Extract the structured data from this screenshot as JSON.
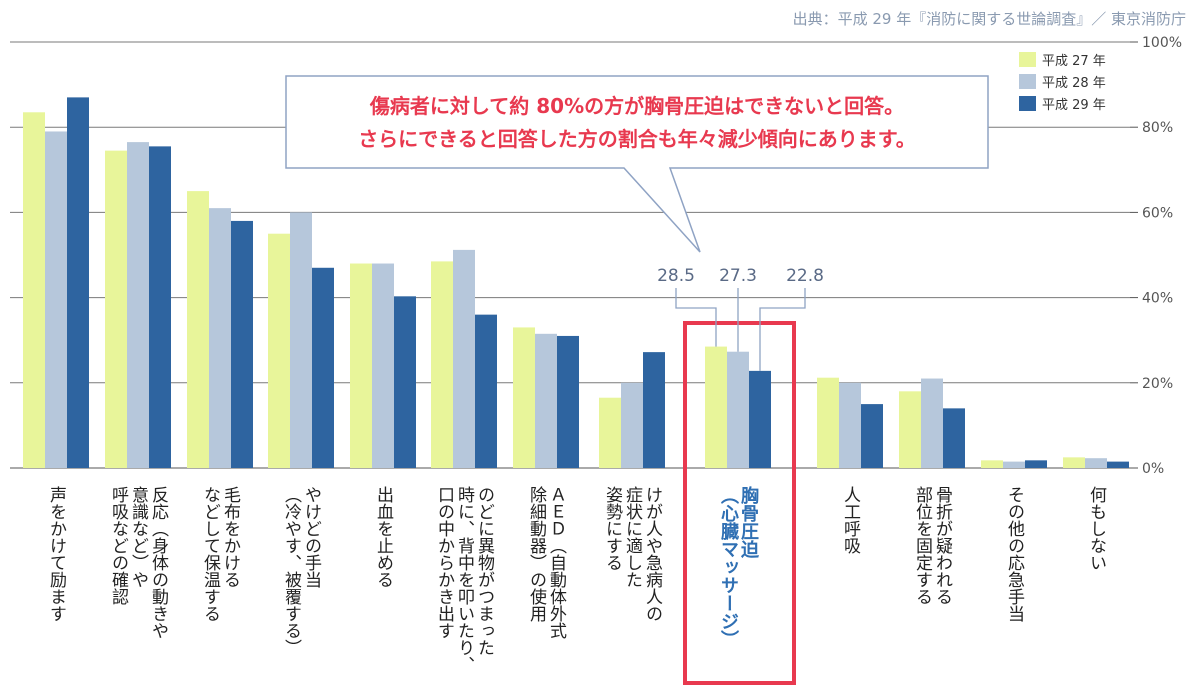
{
  "source": "出典：平成 29 年『消防に関する世論調査』／ 東京消防庁",
  "callout": {
    "line1": "傷病者に対して約 80%の方が胸骨圧迫はできないと回答。",
    "line2": "さらにできると回答した方の割合も年々減少傾向にあります。"
  },
  "colors": {
    "h27": "#e8f59a",
    "h28": "#b6c7db",
    "h29": "#2e64a0",
    "highlight": "#e8394f",
    "callout_border": "#8fa3c4",
    "leader": "#8fa3c4"
  },
  "chart_data": {
    "type": "bar",
    "ylim": [
      0,
      100
    ],
    "yticks": [
      "0%",
      "20%",
      "40%",
      "60%",
      "80%",
      "100%"
    ],
    "categories": [
      "声をかけて励ます",
      "反応（身体の動きや\n意識など）や\n呼吸などの確認",
      "毛布をかける\nなどして保温する",
      "やけどの手当\n（冷やす、被覆する）",
      "出血を止める",
      "のどに異物がつまった\n時に、背中を叩いたり、\n口の中からかき出す",
      "ＡＥＤ（自動体外式\n除細動器）の使用",
      "けが人や急病人の\n症状に適した\n姿勢にする",
      "胸骨圧迫\n（心臓マッサージ）",
      "人工呼吸",
      "骨折が疑われる\n部位を固定する",
      "その他の応急手当",
      "何もしない"
    ],
    "series": [
      {
        "name": "平成 27 年",
        "values": [
          83.5,
          74.5,
          65.0,
          55.0,
          48.0,
          48.5,
          33.0,
          16.5,
          28.5,
          21.2,
          18.0,
          1.8,
          2.5
        ]
      },
      {
        "name": "平成 28 年",
        "values": [
          79.0,
          76.5,
          61.0,
          60.0,
          48.0,
          51.2,
          31.5,
          20.0,
          27.3,
          20.0,
          21.0,
          1.5,
          2.3
        ]
      },
      {
        "name": "平成 29 年",
        "values": [
          87.0,
          75.5,
          58.0,
          47.0,
          40.3,
          36.0,
          31.0,
          27.2,
          22.8,
          15.0,
          14.0,
          1.8,
          1.5
        ]
      }
    ],
    "highlight_index": 8,
    "annotations": [
      "28.5",
      "27.3",
      "22.8"
    ]
  }
}
